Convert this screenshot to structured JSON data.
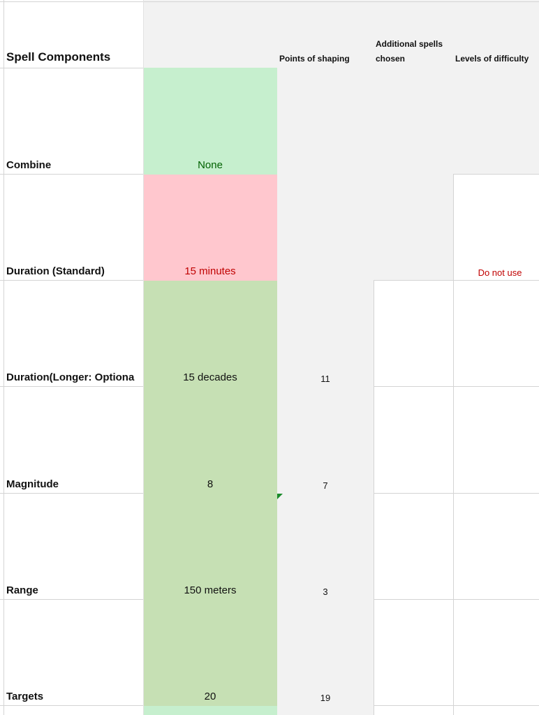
{
  "sheet": {
    "title": "Spell Components",
    "headers": {
      "points": "Points of shaping",
      "additional_line1": "Additional spells",
      "additional_line2": "chosen",
      "levels": "Levels of difficulty"
    },
    "rows": [
      {
        "label": "Combine",
        "value": "None",
        "points": "",
        "difficulty": ""
      },
      {
        "label": "Duration (Standard)",
        "value": "15 minutes",
        "points": "",
        "difficulty": "Do not use"
      },
      {
        "label": "Duration(Longer: Optiona",
        "value": "15 decades",
        "points": "11",
        "difficulty": ""
      },
      {
        "label": "Magnitude",
        "value": "8",
        "points": "7",
        "difficulty": ""
      },
      {
        "label": "Range",
        "value": "150 meters",
        "points": "3",
        "difficulty": ""
      },
      {
        "label": "Targets",
        "value": "20",
        "points": "19",
        "difficulty": ""
      }
    ]
  },
  "colors": {
    "gray_fill": "#f2f2f2",
    "light_green": "#c6efce",
    "green": "#c6e0b4",
    "pink": "#ffc7ce",
    "dark_green_text": "#006100",
    "red_text": "#c00000",
    "grid": "#d4d4d4"
  }
}
